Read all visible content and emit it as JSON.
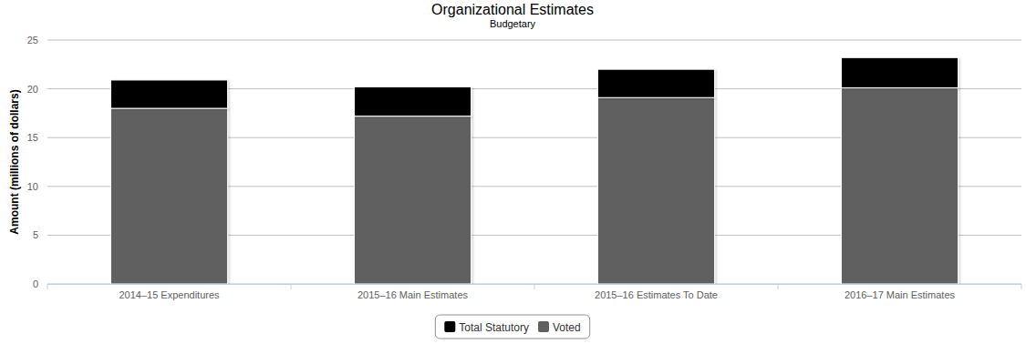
{
  "chart_data": {
    "type": "bar",
    "title": "Organizational Estimates",
    "subtitle": "Budgetary",
    "y_label": "Amount (millions of dollars)",
    "categories": [
      "2014–15 Expenditures",
      "2015–16 Main Estimates",
      "2015–16 Estimates To Date",
      "2016–17 Main Estimates"
    ],
    "series": [
      {
        "name": "Total Statutory",
        "color": "#000000",
        "values": [
          2.9,
          3.0,
          2.9,
          3.1
        ]
      },
      {
        "name": "Voted",
        "color": "#606060",
        "values": [
          18.0,
          17.2,
          19.1,
          20.1
        ]
      }
    ],
    "ylim": [
      0,
      25
    ],
    "yticks": [
      0,
      5,
      10,
      15,
      20,
      25
    ],
    "grid": true,
    "stacked": true,
    "legend": "bottom"
  }
}
